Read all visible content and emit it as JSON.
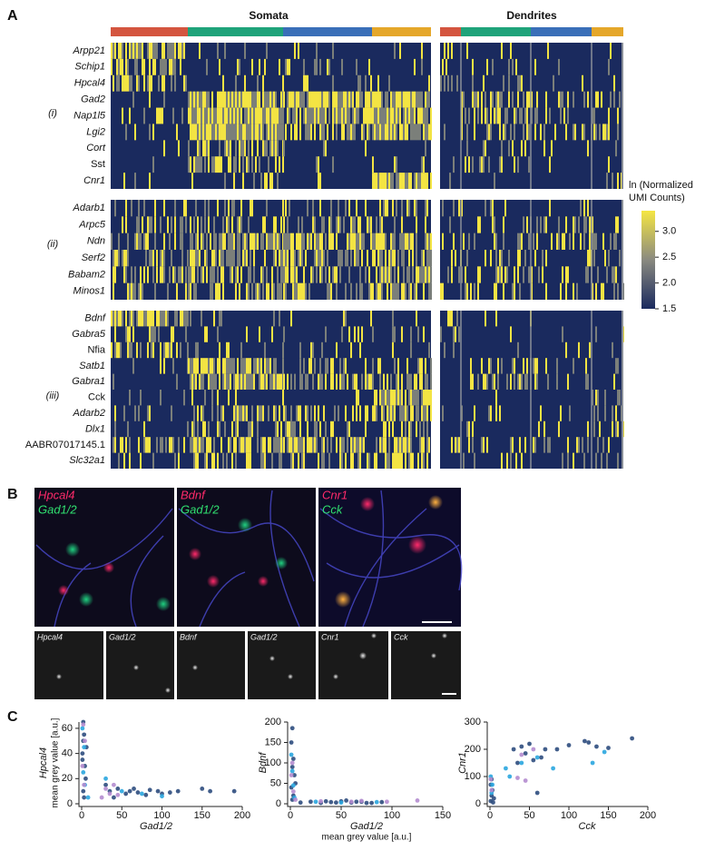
{
  "panel_a": {
    "letter": "A",
    "somata_title": "Somata",
    "dendrites_title": "Dendrites",
    "groups": [
      {
        "label": "(i)",
        "genes": [
          "Arpp21",
          "Schip1",
          "Hpcal4",
          "Gad2",
          "Nap1l5",
          "Lgi2",
          "Cort",
          "Sst",
          "Cnr1"
        ]
      },
      {
        "label": "(ii)",
        "genes": [
          "Adarb1",
          "Arpc5",
          "Ndn",
          "Serf2",
          "Babam2",
          "Minos1"
        ]
      },
      {
        "label": "(iii)",
        "genes": [
          "Bdnf",
          "Gabra5",
          "Nfia",
          "Satb1",
          "Gabra1",
          "Cck",
          "Adarb2",
          "Dlx1",
          "AABR07017145.1",
          "Slc32a1"
        ]
      }
    ],
    "colorbar": {
      "title": [
        "ln (Normalized",
        "UMI Counts)"
      ],
      "lim": [
        1.5,
        3.4
      ],
      "ticks": [
        {
          "value": 3,
          "label": "3.0"
        },
        2.5,
        {
          "value": 2,
          "label": "2.0"
        },
        1.5
      ]
    }
  },
  "panel_b": {
    "letter": "B",
    "overlays": [
      [
        "Hpcal4",
        "Gad1/2"
      ],
      [
        "Bdnf",
        "Gad1/2"
      ],
      [
        "Cnr1",
        "Cck"
      ]
    ],
    "channels": [
      "Hpcal4",
      "Gad1/2",
      "Bdnf",
      "Gad1/2",
      "Cnr1",
      "Cck"
    ]
  },
  "panel_c": {
    "letter": "C"
  },
  "chart_data": [
    {
      "type": "scatter",
      "ylabel": "Hpcal4",
      "ylabel_sub": "mean grey value [a.u.]",
      "xlabel": "Gad1/2",
      "xlim": [
        0,
        200
      ],
      "xticks": [
        0,
        50,
        100,
        150,
        200
      ],
      "ylim": [
        0,
        65
      ],
      "yticks": [
        0,
        20,
        40,
        60
      ],
      "series": [
        {
          "color": "#2e4d7e",
          "x": [
            2,
            3,
            1,
            4,
            5,
            2,
            3,
            6,
            2,
            1,
            30,
            35,
            45,
            55,
            60,
            70,
            80,
            95,
            100,
            110,
            120,
            150,
            160,
            190,
            40,
            65,
            85
          ],
          "values": [
            65,
            55,
            40,
            30,
            20,
            10,
            5,
            45,
            50,
            35,
            15,
            10,
            12,
            8,
            10,
            9,
            7,
            10,
            8,
            9,
            10,
            12,
            10,
            10,
            5,
            12,
            11
          ]
        },
        {
          "color": "#2aa6df",
          "x": [
            1,
            3,
            2,
            4,
            8,
            30,
            50,
            75,
            100
          ],
          "values": [
            60,
            45,
            25,
            15,
            5,
            20,
            10,
            8,
            6
          ]
        },
        {
          "color": "#b48ccf",
          "x": [
            2,
            4,
            1,
            3,
            30,
            35,
            40,
            25,
            45
          ],
          "values": [
            63,
            50,
            30,
            15,
            12,
            8,
            15,
            5,
            7
          ]
        }
      ]
    },
    {
      "type": "scatter",
      "ylabel": "Bdnf",
      "xlabel": "Gad1/2",
      "xlabel_sub": "mean grey value [a.u.]",
      "xlim": [
        0,
        150
      ],
      "xticks": [
        0,
        50,
        100,
        150
      ],
      "ylim": [
        0,
        200
      ],
      "yticks": [
        0,
        50,
        100,
        150,
        200
      ],
      "series": [
        {
          "color": "#2e4d7e",
          "x": [
            2,
            1,
            3,
            2,
            4,
            5,
            1,
            3,
            2,
            10,
            20,
            30,
            40,
            50,
            60,
            70,
            80,
            90,
            35,
            45,
            55,
            65,
            75
          ],
          "values": [
            185,
            150,
            110,
            90,
            70,
            50,
            40,
            20,
            10,
            3,
            5,
            2,
            4,
            6,
            3,
            5,
            2,
            4,
            6,
            3,
            8,
            5,
            2
          ]
        },
        {
          "color": "#2aa6df",
          "x": [
            1,
            2,
            3,
            4,
            25,
            50,
            85
          ],
          "values": [
            120,
            80,
            45,
            15,
            5,
            3,
            4
          ]
        },
        {
          "color": "#b48ccf",
          "x": [
            2,
            1,
            3,
            5,
            30,
            60,
            70,
            95,
            125
          ],
          "values": [
            100,
            70,
            30,
            10,
            6,
            5,
            7,
            5,
            8
          ]
        }
      ]
    },
    {
      "type": "scatter",
      "ylabel": "Cnr1",
      "xlabel": "Cck",
      "xlim": [
        0,
        200
      ],
      "xticks": [
        0,
        50,
        100,
        150,
        200
      ],
      "ylim": [
        0,
        300
      ],
      "yticks": [
        0,
        100,
        200,
        300
      ],
      "series": [
        {
          "color": "#2e4d7e",
          "x": [
            1,
            2,
            3,
            1,
            2,
            4,
            5,
            30,
            35,
            40,
            50,
            55,
            60,
            70,
            85,
            100,
            120,
            125,
            135,
            150,
            180,
            45,
            65
          ],
          "values": [
            10,
            30,
            50,
            70,
            90,
            5,
            20,
            200,
            150,
            210,
            220,
            160,
            40,
            200,
            200,
            215,
            230,
            225,
            210,
            205,
            240,
            185,
            170
          ]
        },
        {
          "color": "#2aa6df",
          "x": [
            2,
            3,
            1,
            20,
            25,
            40,
            60,
            80,
            130,
            145
          ],
          "values": [
            40,
            70,
            100,
            130,
            100,
            150,
            170,
            130,
            150,
            190
          ]
        },
        {
          "color": "#b48ccf",
          "x": [
            2,
            1,
            35,
            40,
            45,
            55
          ],
          "values": [
            50,
            90,
            95,
            180,
            85,
            200
          ]
        }
      ]
    }
  ]
}
